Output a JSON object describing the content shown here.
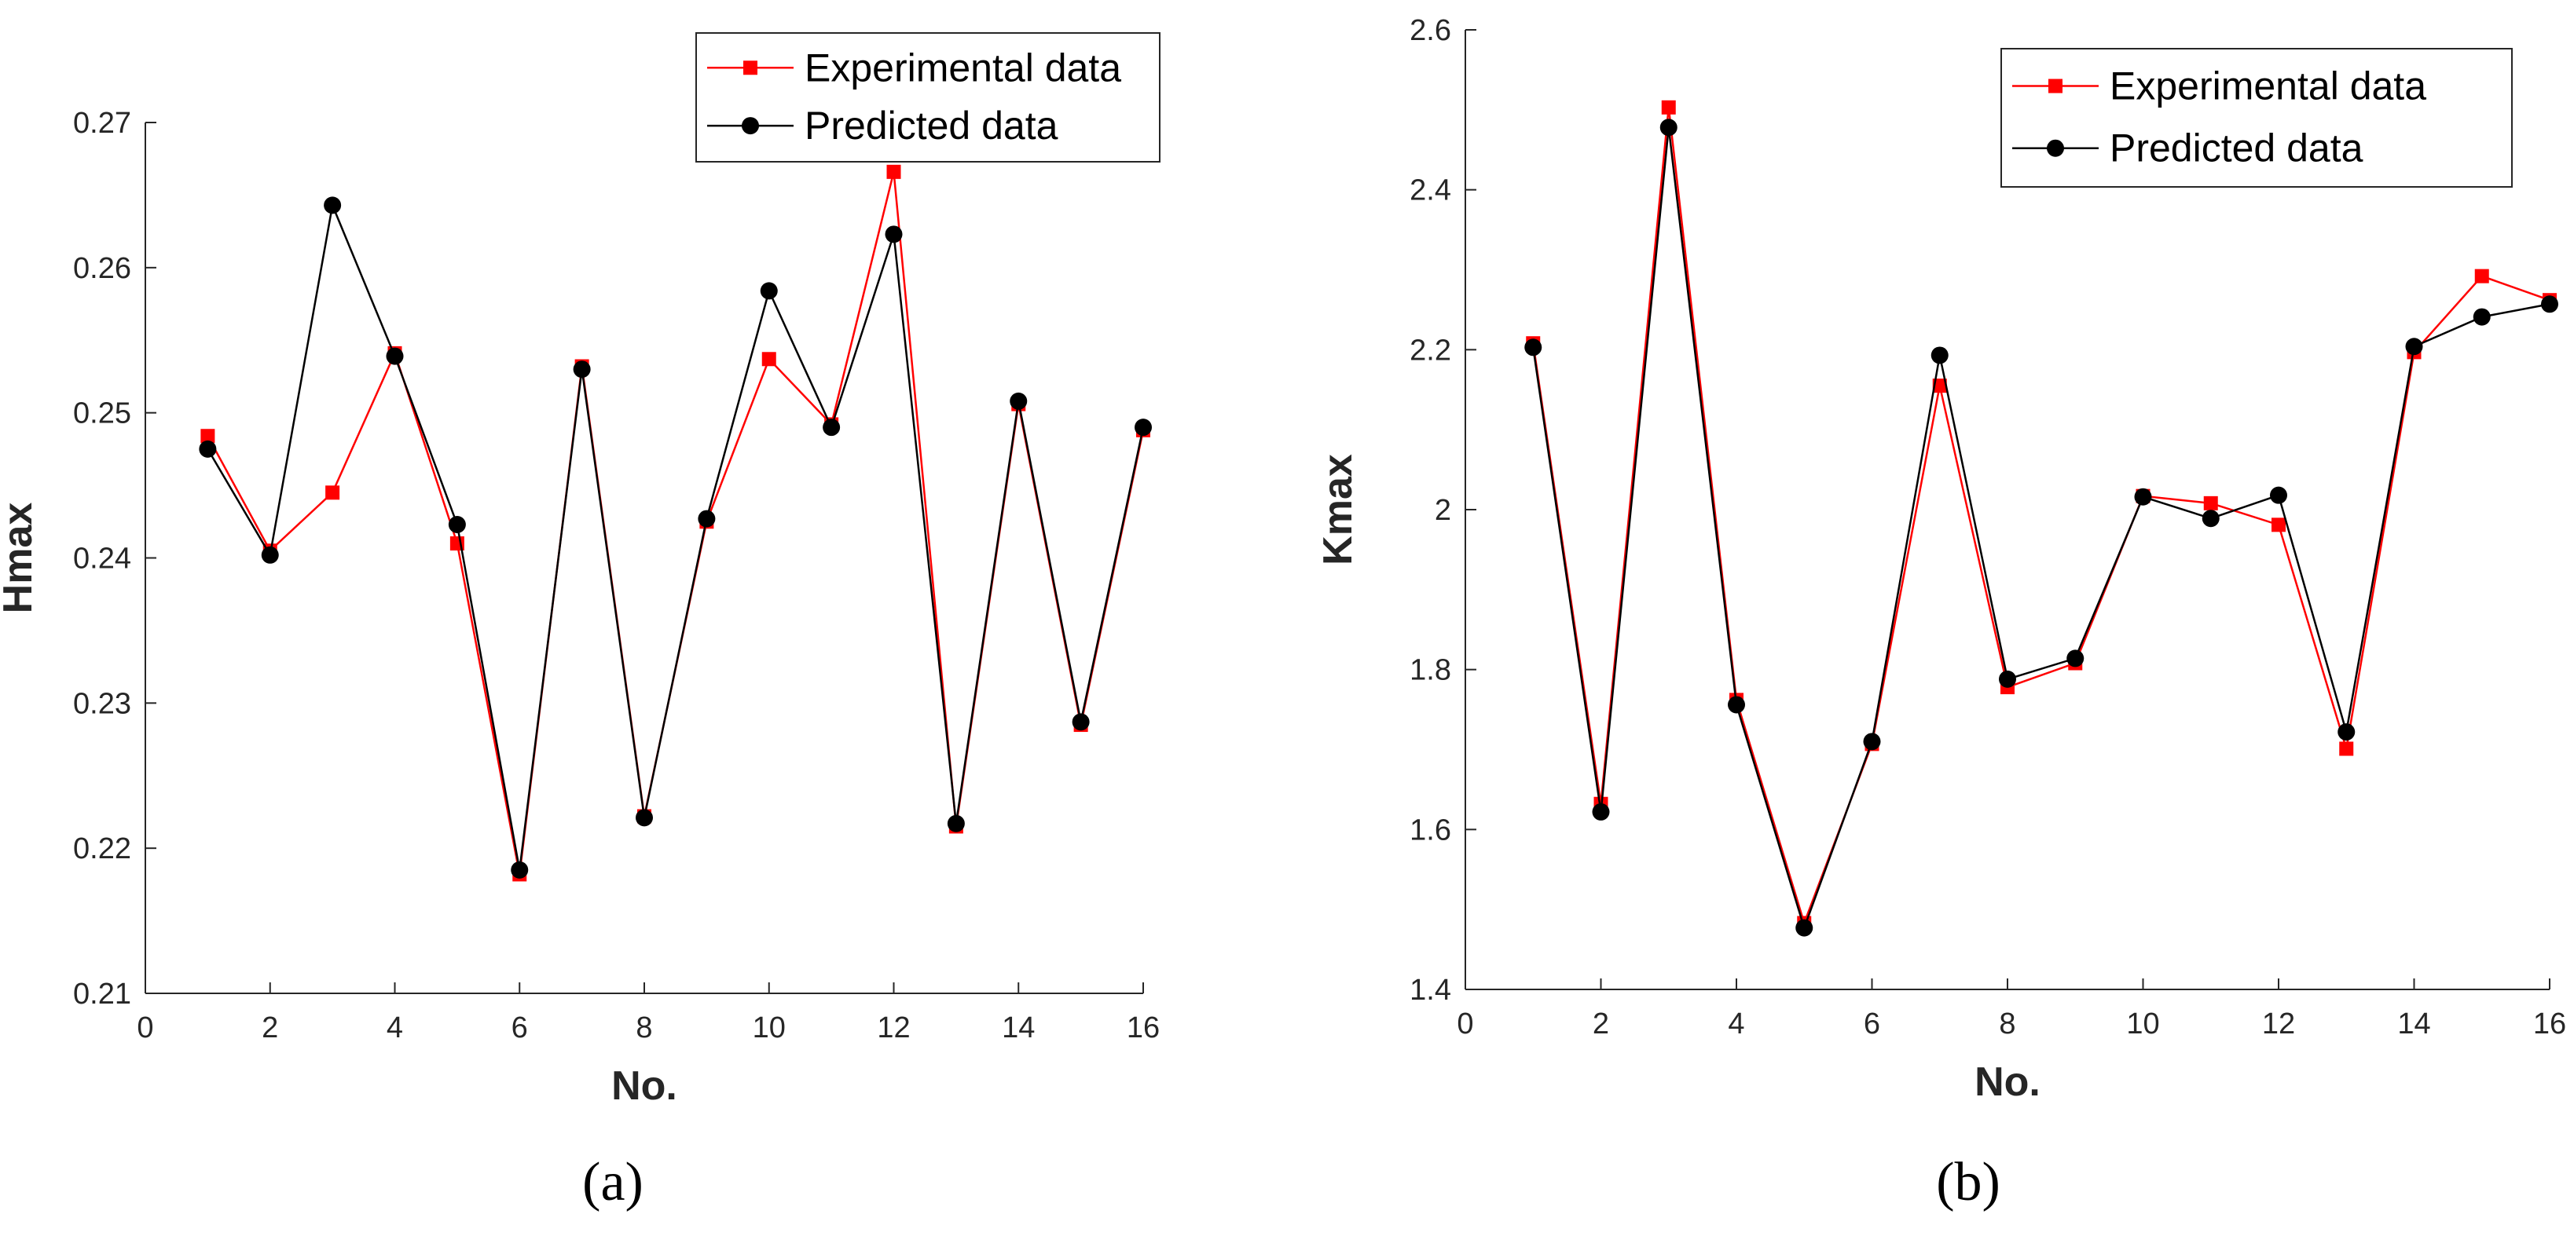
{
  "chart_data": [
    {
      "type": "line",
      "panel_label": "(a)",
      "xlabel": "No.",
      "ylabel": "Hmax",
      "xlim": [
        0,
        16
      ],
      "ylim": [
        0.21,
        0.27
      ],
      "xticks": [
        0,
        2,
        4,
        6,
        8,
        10,
        12,
        14,
        16
      ],
      "yticks": [
        0.21,
        0.22,
        0.23,
        0.24,
        0.25,
        0.26,
        0.27
      ],
      "grid": false,
      "legend_position": "top-right",
      "x": [
        1,
        2,
        3,
        4,
        5,
        6,
        7,
        8,
        9,
        10,
        11,
        12,
        13,
        14,
        15,
        16
      ],
      "series": [
        {
          "name": "Experimental data",
          "color": "#ff0000",
          "marker": "square",
          "values": [
            0.2484,
            0.2405,
            0.2445,
            0.2541,
            0.241,
            0.2182,
            0.2532,
            0.2222,
            0.2425,
            0.2537,
            0.2492,
            0.2666,
            0.2215,
            0.2506,
            0.2285,
            0.2488
          ]
        },
        {
          "name": "Predicted data",
          "color": "#000000",
          "marker": "circle",
          "values": [
            0.2475,
            0.2402,
            0.2643,
            0.2539,
            0.2423,
            0.2185,
            0.253,
            0.2221,
            0.2427,
            0.2584,
            0.249,
            0.2623,
            0.2217,
            0.2508,
            0.2287,
            0.249
          ]
        }
      ]
    },
    {
      "type": "line",
      "panel_label": "(b)",
      "xlabel": "No.",
      "ylabel": "Kmax",
      "xlim": [
        0,
        16
      ],
      "ylim": [
        1.4,
        2.6
      ],
      "xticks": [
        0,
        2,
        4,
        6,
        8,
        10,
        12,
        14,
        16
      ],
      "yticks": [
        1.4,
        1.6,
        1.8,
        2,
        2.2,
        2.4,
        2.6
      ],
      "grid": false,
      "legend_position": "top-right",
      "x": [
        1,
        2,
        3,
        4,
        5,
        6,
        7,
        8,
        9,
        10,
        11,
        12,
        13,
        14,
        15,
        16
      ],
      "series": [
        {
          "name": "Experimental data",
          "color": "#ff0000",
          "marker": "square",
          "values": [
            2.208,
            1.632,
            2.503,
            1.762,
            1.483,
            1.707,
            2.155,
            1.778,
            1.808,
            2.017,
            2.008,
            1.981,
            1.701,
            2.197,
            2.292,
            2.262
          ]
        },
        {
          "name": "Predicted data",
          "color": "#000000",
          "marker": "circle",
          "values": [
            2.203,
            1.622,
            2.478,
            1.756,
            1.477,
            1.71,
            2.193,
            1.788,
            1.814,
            2.016,
            1.989,
            2.018,
            1.722,
            2.204,
            2.241,
            2.257
          ]
        }
      ]
    }
  ]
}
